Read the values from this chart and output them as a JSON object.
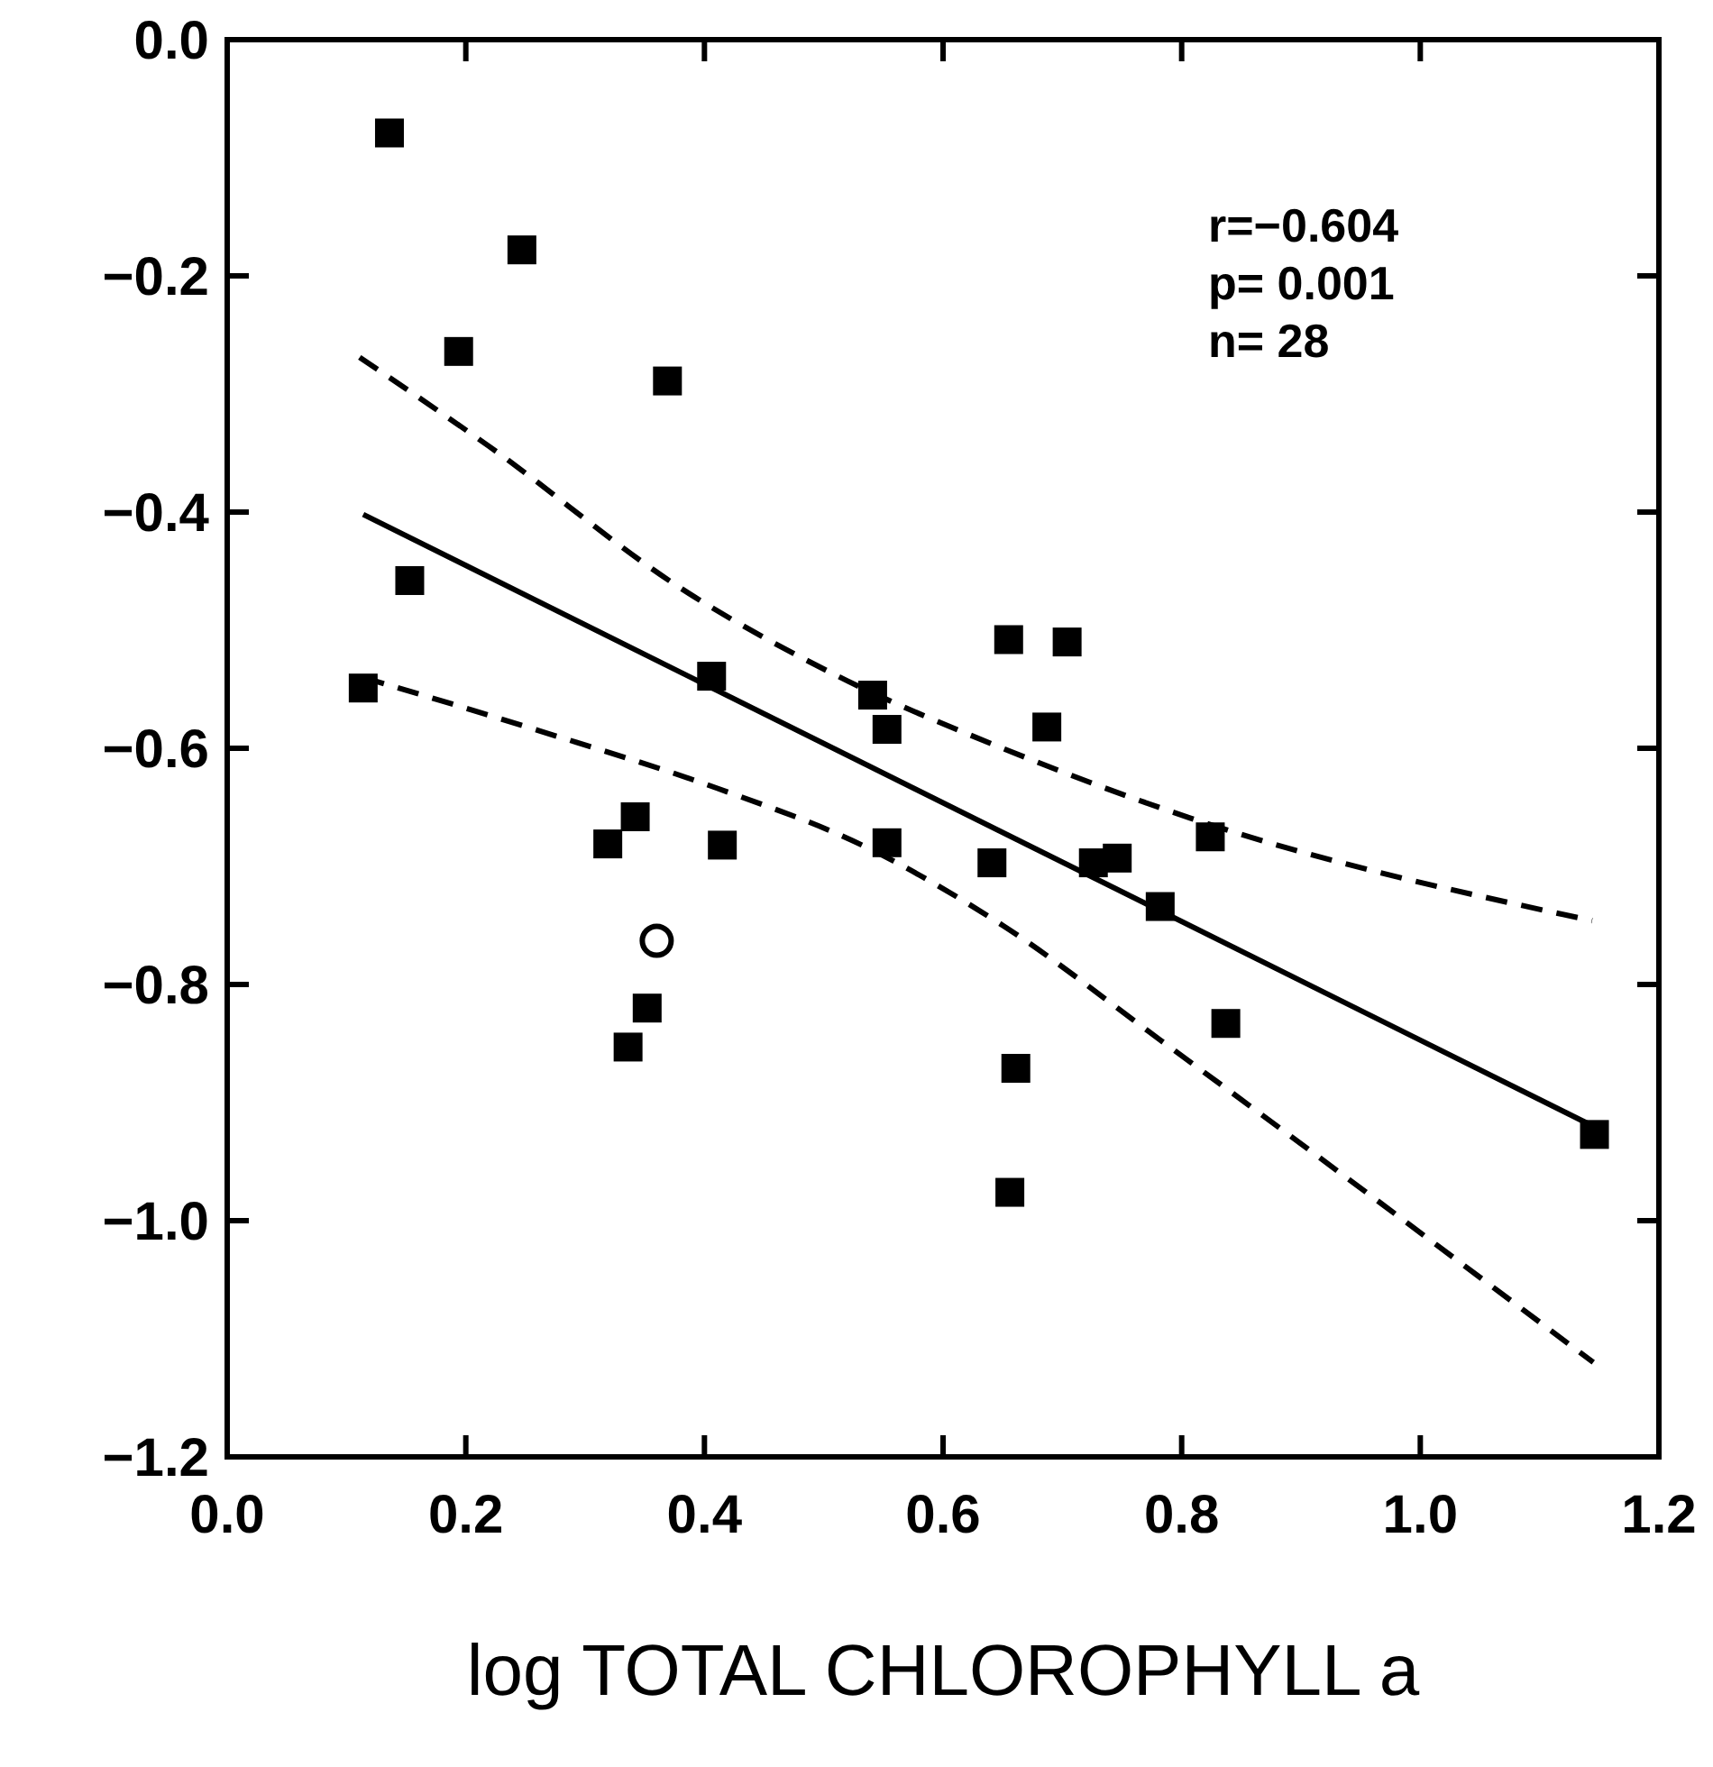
{
  "chart_data": {
    "type": "scatter",
    "xlabel": "log TOTAL CHLOROPHYLL a",
    "annotations": [
      "r=−0.604",
      "p= 0.001",
      "n= 28"
    ],
    "xlim": [
      0,
      1.2
    ],
    "xticks": [
      {
        "value": 0,
        "label": "0.0"
      },
      {
        "value": 0.2,
        "label": "0.2"
      },
      {
        "value": 0.4,
        "label": "0.4"
      },
      {
        "value": 0.6,
        "label": "0.6"
      },
      {
        "value": 0.8,
        "label": "0.8"
      },
      {
        "value": 1,
        "label": "1.0"
      },
      {
        "value": 1.2,
        "label": "1.2"
      }
    ],
    "ylim": [
      -1.2,
      0
    ],
    "yticks": [
      {
        "value": -1.2,
        "label": "−1.2"
      },
      {
        "value": -1,
        "label": "−1.0"
      },
      {
        "value": -0.8,
        "label": "−0.8"
      },
      {
        "value": -0.6,
        "label": "−0.6"
      },
      {
        "value": -0.4,
        "label": "−0.4"
      },
      {
        "value": -0.2,
        "label": "−0.2"
      },
      {
        "value": 0,
        "label": "0.0"
      }
    ],
    "grid": false,
    "series": [
      {
        "marker": "square",
        "color": "#000000",
        "x": [
          0.136,
          0.247,
          0.194,
          0.369,
          0.153,
          0.114,
          0.406,
          0.541,
          0.553,
          0.342,
          0.319,
          0.415,
          0.553,
          0.352,
          0.336,
          0.655,
          0.704,
          0.687,
          0.641,
          0.726,
          0.746,
          0.824,
          0.782,
          0.837,
          0.661,
          0.656,
          1.146
        ],
        "values": [
          -0.079,
          -0.178,
          -0.264,
          -0.289,
          -0.458,
          -0.549,
          -0.539,
          -0.555,
          -0.584,
          -0.658,
          -0.681,
          -0.682,
          -0.68,
          -0.82,
          -0.853,
          -0.508,
          -0.51,
          -0.582,
          -0.697,
          -0.697,
          -0.693,
          -0.675,
          -0.734,
          -0.833,
          -0.871,
          -0.976,
          -0.927
        ]
      },
      {
        "marker": "circle",
        "color": "#000000",
        "x": [
          0.36
        ],
        "values": [
          -0.763
        ]
      },
      {
        "type": "line",
        "line_style": "solid",
        "color": "#000000",
        "x": [
          0.114,
          1.145
        ],
        "values": [
          -0.402,
          -0.92
        ]
      },
      {
        "type": "line",
        "line_style": "dashed",
        "color": "#000000",
        "x": [
          0.111,
          0.219,
          0.381,
          0.52,
          0.65,
          0.807,
          1.144
        ],
        "values": [
          -0.269,
          -0.344,
          -0.465,
          -0.543,
          -0.6,
          -0.659,
          -0.746
        ]
      },
      {
        "type": "line",
        "line_style": "dashed",
        "color": "#000000",
        "x": [
          0.114,
          0.261,
          0.411,
          0.532,
          0.65,
          0.782,
          1.145
        ],
        "values": [
          -0.54,
          -0.585,
          -0.634,
          -0.682,
          -0.75,
          -0.847,
          -1.12
        ]
      }
    ]
  }
}
